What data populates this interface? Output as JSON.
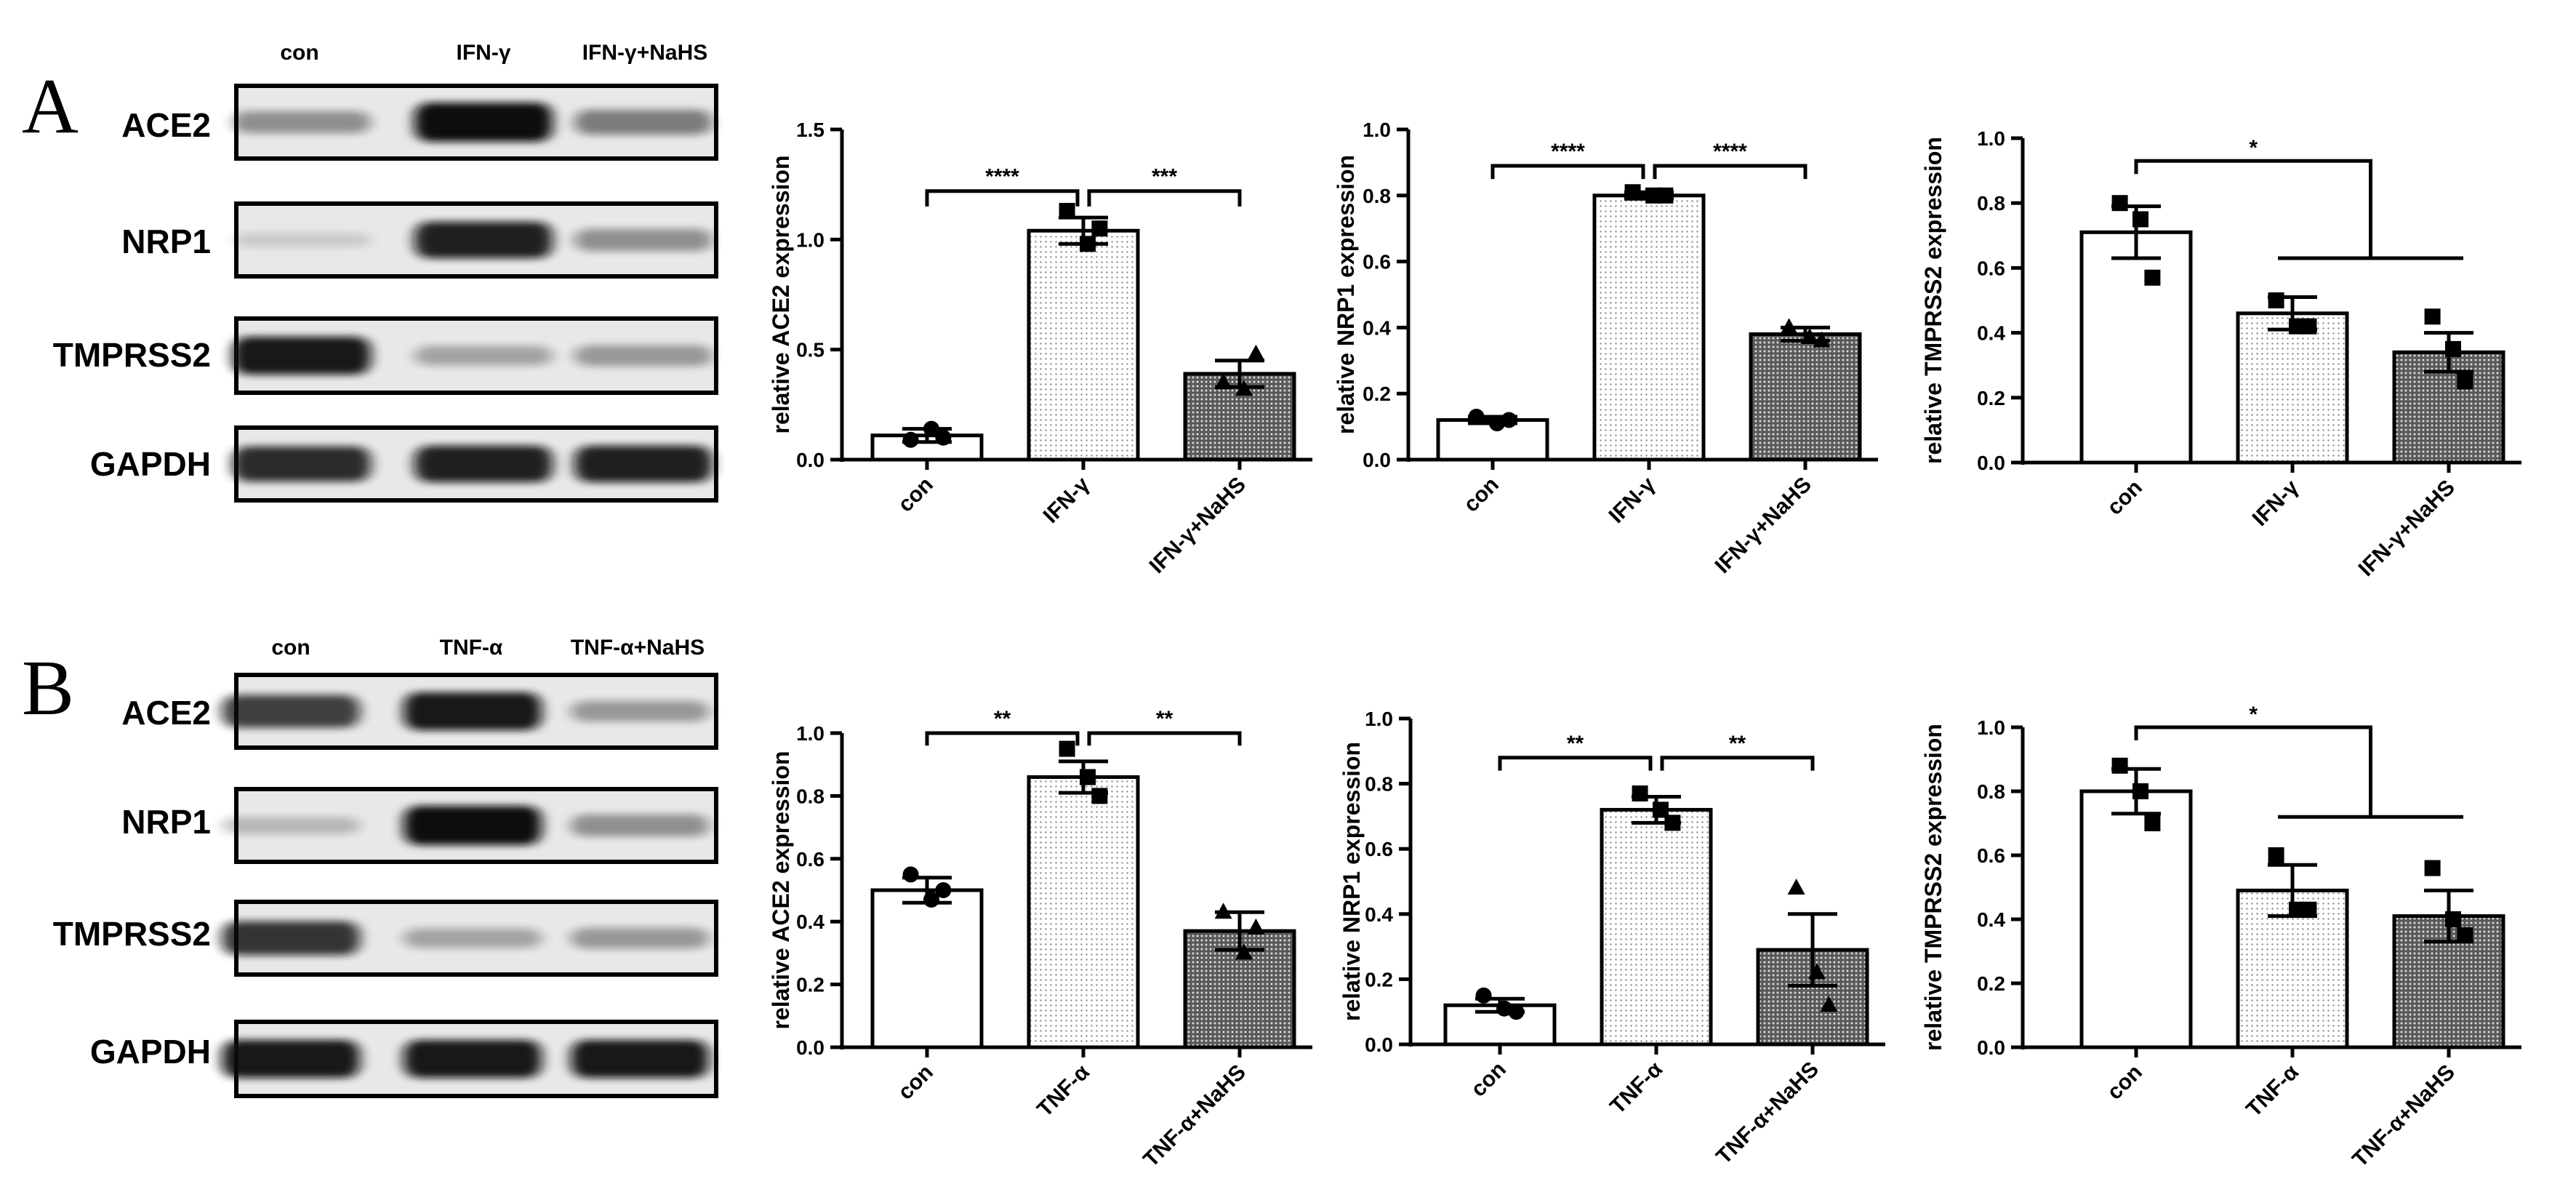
{
  "colors": {
    "stroke": "#000000",
    "band": "#111111",
    "membrane": "#e9e9e9",
    "dot_fill": "#cfcfcf",
    "dense_fill": "#4a4a4a"
  },
  "panels": [
    {
      "letter": "A",
      "lanes": [
        "con",
        "IFN-γ",
        "IFN-γ+NaHS"
      ],
      "blots": [
        {
          "protein": "ACE2",
          "band_intensity": [
            0.35,
            1.0,
            0.45
          ]
        },
        {
          "protein": "NRP1",
          "band_intensity": [
            0.05,
            0.9,
            0.35
          ]
        },
        {
          "protein": "TMPRSS2",
          "band_intensity": [
            0.95,
            0.25,
            0.3
          ]
        },
        {
          "protein": "GAPDH",
          "band_intensity": [
            0.85,
            0.9,
            0.9
          ]
        }
      ]
    },
    {
      "letter": "B",
      "lanes": [
        "con",
        "TNF-α",
        "TNF-α+NaHS"
      ],
      "blots": [
        {
          "protein": "ACE2",
          "band_intensity": [
            0.75,
            0.95,
            0.3
          ]
        },
        {
          "protein": "NRP1",
          "band_intensity": [
            0.15,
            1.0,
            0.35
          ]
        },
        {
          "protein": "TMPRSS2",
          "band_intensity": [
            0.8,
            0.25,
            0.3
          ]
        },
        {
          "protein": "GAPDH",
          "band_intensity": [
            0.95,
            0.95,
            0.95
          ]
        }
      ]
    }
  ],
  "chart_data": [
    {
      "id": "A-ACE2",
      "type": "bar",
      "ylabel": "relative ACE2 expression",
      "categories": [
        "con",
        "IFN-γ",
        "IFN-γ+NaHS"
      ],
      "ylim": [
        0,
        1.5
      ],
      "yticks": [
        "0.0",
        "0.5",
        "1.0",
        "1.5"
      ],
      "means": [
        0.11,
        1.04,
        0.39
      ],
      "errors": [
        0.03,
        0.06,
        0.06
      ],
      "points": [
        [
          0.09,
          0.14,
          0.1
        ],
        [
          1.13,
          0.98,
          1.05
        ],
        [
          0.35,
          0.32,
          0.48
        ]
      ],
      "markers": [
        "circle",
        "square",
        "triangle"
      ],
      "sig": [
        {
          "from": 0,
          "to": 1,
          "label": "****",
          "y": 1.22,
          "drop": 0.07
        },
        {
          "from": 1,
          "to": 2,
          "label": "***",
          "y": 1.22,
          "drop": 0.07
        }
      ]
    },
    {
      "id": "A-NRP1",
      "type": "bar",
      "ylabel": "relative NRP1 expression",
      "categories": [
        "con",
        "IFN-γ",
        "IFN-γ+NaHS"
      ],
      "ylim": [
        0,
        1.0
      ],
      "yticks": [
        "0.0",
        "0.2",
        "0.4",
        "0.6",
        "0.8",
        "1.0"
      ],
      "means": [
        0.12,
        0.8,
        0.38
      ],
      "errors": [
        0.01,
        0.01,
        0.02
      ],
      "points": [
        [
          0.13,
          0.11,
          0.12
        ],
        [
          0.81,
          0.8,
          0.8
        ],
        [
          0.4,
          0.37,
          0.36
        ]
      ],
      "markers": [
        "circle",
        "square",
        "triangle"
      ],
      "sig": [
        {
          "from": 0,
          "to": 1,
          "label": "****",
          "y": 0.89,
          "drop": 0.04
        },
        {
          "from": 1,
          "to": 2,
          "label": "****",
          "y": 0.89,
          "drop": 0.04
        }
      ]
    },
    {
      "id": "A-TMPRSS2",
      "type": "bar",
      "ylabel": "relative TMPRSS2 expression",
      "categories": [
        "con",
        "IFN-γ",
        "IFN-γ+NaHS"
      ],
      "ylim": [
        0,
        1.0
      ],
      "yticks": [
        "0.0",
        "0.2",
        "0.4",
        "0.6",
        "0.8",
        "1.0"
      ],
      "means": [
        0.71,
        0.46,
        0.34
      ],
      "errors": [
        0.08,
        0.05,
        0.06
      ],
      "points": [
        [
          0.8,
          0.75,
          0.57
        ],
        [
          0.5,
          0.42,
          0.42
        ],
        [
          0.45,
          0.35,
          0.25
        ]
      ],
      "markers": [
        "square",
        "square",
        "square"
      ],
      "sig": [
        {
          "type": "hook",
          "label": "*",
          "y": 0.93,
          "second_y": 0.63
        }
      ]
    },
    {
      "id": "B-ACE2",
      "type": "bar",
      "ylabel": "relative ACE2 expression",
      "categories": [
        "con",
        "TNF-α",
        "TNF-α+NaHS"
      ],
      "ylim": [
        0,
        1.0
      ],
      "yticks": [
        "0.0",
        "0.2",
        "0.4",
        "0.6",
        "0.8",
        "1.0"
      ],
      "means": [
        0.5,
        0.86,
        0.37
      ],
      "errors": [
        0.04,
        0.05,
        0.06
      ],
      "points": [
        [
          0.55,
          0.47,
          0.5
        ],
        [
          0.95,
          0.86,
          0.8
        ],
        [
          0.43,
          0.3,
          0.38
        ]
      ],
      "markers": [
        "circle",
        "square",
        "triangle"
      ],
      "sig": [
        {
          "from": 0,
          "to": 1,
          "label": "**",
          "y": 1.0,
          "drop": 0.04
        },
        {
          "from": 1,
          "to": 2,
          "label": "**",
          "y": 1.0,
          "drop": 0.04
        }
      ]
    },
    {
      "id": "B-NRP1",
      "type": "bar",
      "ylabel": "relative NRP1 expression",
      "categories": [
        "con",
        "TNF-α",
        "TNF-α+NaHS"
      ],
      "ylim": [
        0,
        1.0
      ],
      "yticks": [
        "0.0",
        "0.2",
        "0.4",
        "0.6",
        "0.8",
        "1.0"
      ],
      "means": [
        0.12,
        0.72,
        0.29
      ],
      "errors": [
        0.02,
        0.04,
        0.11
      ],
      "points": [
        [
          0.15,
          0.11,
          0.1
        ],
        [
          0.77,
          0.72,
          0.68
        ],
        [
          0.48,
          0.22,
          0.12
        ]
      ],
      "markers": [
        "circle",
        "square",
        "triangle"
      ],
      "sig": [
        {
          "from": 0,
          "to": 1,
          "label": "**",
          "y": 0.88,
          "drop": 0.04
        },
        {
          "from": 1,
          "to": 2,
          "label": "**",
          "y": 0.88,
          "drop": 0.04
        }
      ]
    },
    {
      "id": "B-TMPRSS2",
      "type": "bar",
      "ylabel": "relative TMPRSS2 expression",
      "categories": [
        "con",
        "TNF-α",
        "TNF-α+NaHS"
      ],
      "ylim": [
        0,
        1.0
      ],
      "yticks": [
        "0.0",
        "0.2",
        "0.4",
        "0.6",
        "0.8",
        "1.0"
      ],
      "means": [
        0.8,
        0.49,
        0.41
      ],
      "errors": [
        0.07,
        0.08,
        0.08
      ],
      "points": [
        [
          0.88,
          0.8,
          0.7
        ],
        [
          0.6,
          0.43,
          0.43
        ],
        [
          0.56,
          0.4,
          0.35
        ]
      ],
      "markers": [
        "square",
        "square",
        "square"
      ],
      "sig": [
        {
          "type": "hook",
          "label": "*",
          "y": 1.0,
          "second_y": 0.72
        }
      ]
    }
  ]
}
